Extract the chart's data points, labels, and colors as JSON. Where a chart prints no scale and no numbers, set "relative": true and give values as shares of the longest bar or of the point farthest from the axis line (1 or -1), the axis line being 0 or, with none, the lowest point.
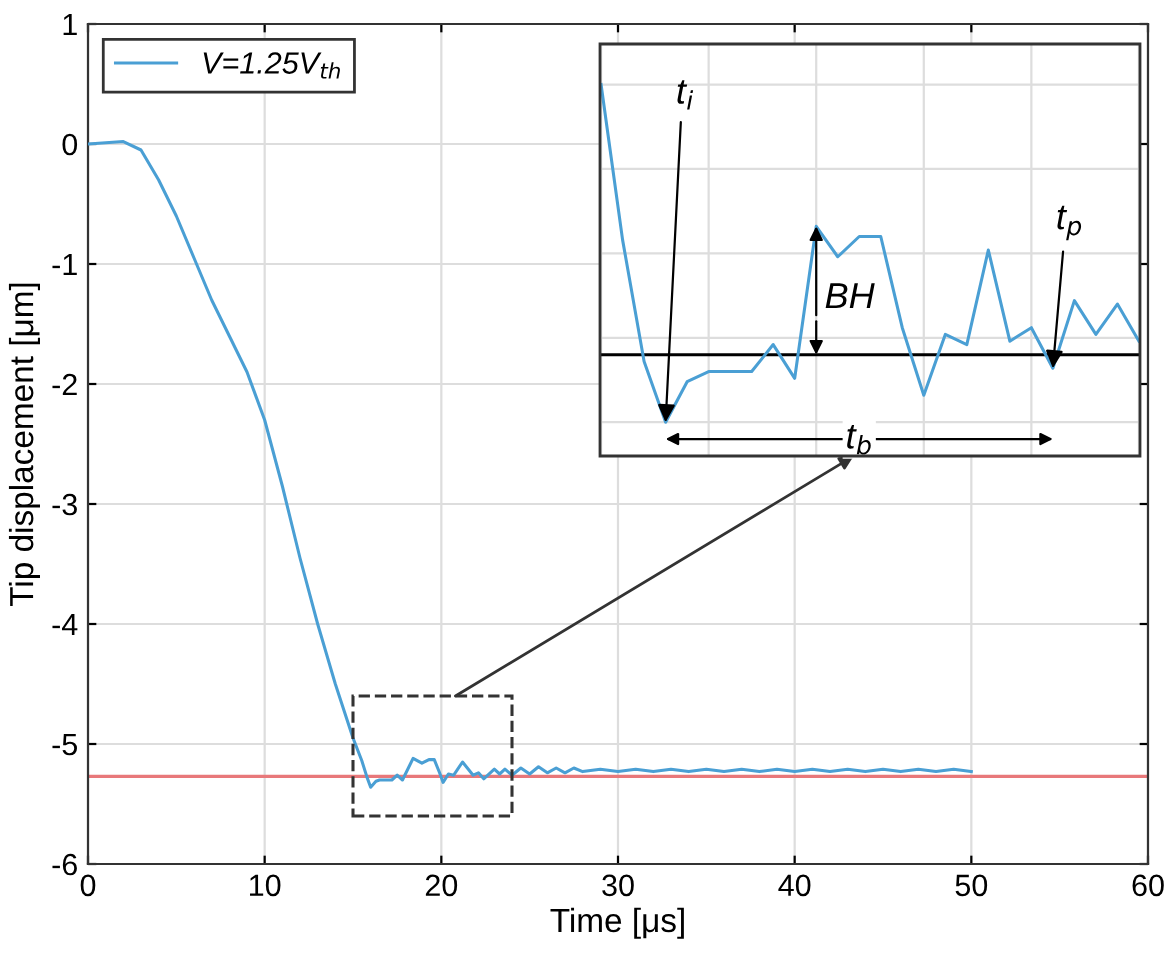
{
  "chart_data": [
    {
      "type": "line",
      "xlabel": "Time [μs]",
      "ylabel": "Tip displacement [μm]",
      "xlim": [
        0,
        60
      ],
      "ylim": [
        -6,
        1
      ],
      "xticks": [
        0,
        10,
        20,
        30,
        40,
        50,
        60
      ],
      "yticks": [
        -6,
        -5,
        -4,
        -3,
        -2,
        -1,
        0,
        1
      ],
      "grid": true,
      "legend": "top left",
      "x": [
        0,
        1,
        2,
        3,
        4,
        5,
        6,
        7,
        8,
        9,
        10,
        11,
        12,
        13,
        14,
        15,
        15.5,
        15.8,
        16,
        16.3,
        16.5,
        16.9,
        17.2,
        17.5,
        17.8,
        18.4,
        18.9,
        19.3,
        19.6,
        19.9,
        20.1,
        20.4,
        20.7,
        21.2,
        21.8,
        22.1,
        22.4,
        23,
        23.3,
        23.6,
        24,
        24.5,
        25,
        25.5,
        26,
        26.5,
        27,
        27.5,
        28,
        29,
        30,
        31,
        32,
        33,
        34,
        35,
        36,
        37,
        38,
        39,
        40,
        41,
        42,
        43,
        44,
        45,
        46,
        47,
        48,
        49,
        50
      ],
      "series": [
        {
          "name": "V=1.25V$_{th}$",
          "color": "#4a9fd4",
          "values": [
            0,
            0.01,
            0.02,
            -0.05,
            -0.3,
            -0.6,
            -0.95,
            -1.3,
            -1.6,
            -1.9,
            -2.3,
            -2.85,
            -3.45,
            -4.0,
            -4.5,
            -4.95,
            -5.14,
            -5.28,
            -5.36,
            -5.31,
            -5.3,
            -5.3,
            -5.3,
            -5.26,
            -5.3,
            -5.12,
            -5.16,
            -5.13,
            -5.13,
            -5.24,
            -5.32,
            -5.25,
            -5.26,
            -5.15,
            -5.26,
            -5.24,
            -5.29,
            -5.21,
            -5.25,
            -5.21,
            -5.26,
            -5.2,
            -5.25,
            -5.19,
            -5.24,
            -5.2,
            -5.24,
            -5.2,
            -5.23,
            -5.21,
            -5.23,
            -5.21,
            -5.23,
            -5.21,
            -5.23,
            -5.21,
            -5.23,
            -5.21,
            -5.23,
            -5.21,
            -5.23,
            -5.21,
            -5.23,
            -5.21,
            -5.23,
            -5.21,
            -5.23,
            -5.21,
            -5.23,
            -5.21,
            -5.23
          ]
        }
      ],
      "ref_lines": [
        {
          "axis": "y",
          "value": -5.27,
          "label": null,
          "color": "#e8787a"
        }
      ]
    },
    {
      "type": "line",
      "relative": true,
      "grid": true,
      "tick_labels": false,
      "categories": [
        null,
        null,
        null,
        null,
        null,
        null,
        null,
        null,
        null,
        null,
        null,
        null,
        null,
        null,
        null,
        null,
        null,
        null,
        null,
        null,
        null,
        null,
        null,
        null,
        null,
        null
      ],
      "series": [
        {
          "color": "#4a9fd4",
          "values": [
            1,
            0.54,
            0.18,
            0,
            0.12,
            0.15,
            0.15,
            0.15,
            0.23,
            0.13,
            0.58,
            0.49,
            0.55,
            0.55,
            0.28,
            0.08,
            0.26,
            0.23,
            0.51,
            0.24,
            0.28,
            0.16,
            0.36,
            0.26,
            0.35,
            0.24
          ]
        }
      ],
      "ref_lines": [
        {
          "axis": "y",
          "value": 0.2,
          "label": null,
          "color": "#000000"
        }
      ],
      "annotations": [
        "t$_{i}$",
        "t$_{p}$",
        "BH",
        "t$_{b}$"
      ]
    }
  ]
}
